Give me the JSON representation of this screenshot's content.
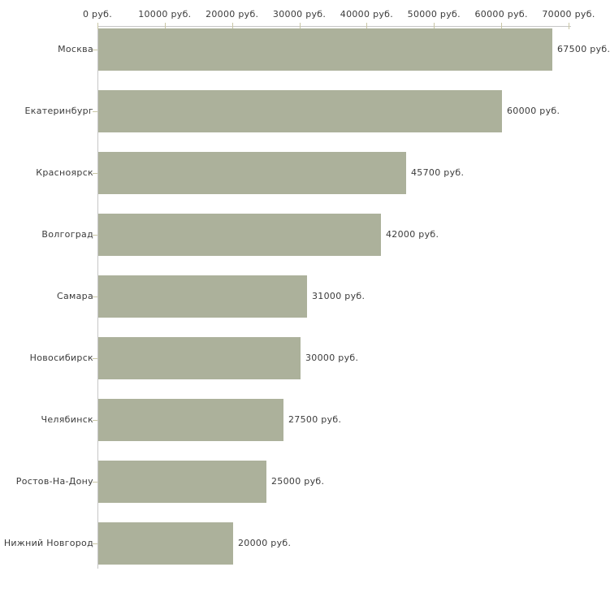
{
  "chart_data": {
    "type": "bar",
    "orientation": "horizontal",
    "title": "",
    "categories": [
      "Москва",
      "Екатеринбург",
      "Красноярск",
      "Волгоград",
      "Самара",
      "Новосибирск",
      "Челябинск",
      "Ростов-На-Дону",
      "Нижний Новгород"
    ],
    "values": [
      67500,
      60000,
      45700,
      42000,
      31000,
      30000,
      27500,
      25000,
      20000
    ],
    "value_labels": [
      "67500 руб.",
      "60000 руб.",
      "45700 руб.",
      "42000 руб.",
      "31000 руб.",
      "30000 руб.",
      "27500 руб.",
      "25000 руб.",
      "20000 руб."
    ],
    "x_axis": {
      "position": "top",
      "range": [
        0,
        70000
      ],
      "unit": "руб.",
      "tick_values": [
        0,
        10000,
        20000,
        30000,
        40000,
        50000,
        60000,
        70000
      ],
      "tick_labels": [
        "0 руб.",
        "10000 руб.",
        "20000 руб.",
        "30000 руб.",
        "40000 руб.",
        "50000 руб.",
        "60000 руб.",
        "70000 руб."
      ]
    },
    "legend": "none",
    "grid": "off",
    "colors": {
      "bar": "#acb19b",
      "axis_line": "#c6c6c6",
      "tick": "#c9c6a5",
      "text": "#3b3b3b",
      "background": "#ffffff"
    }
  }
}
